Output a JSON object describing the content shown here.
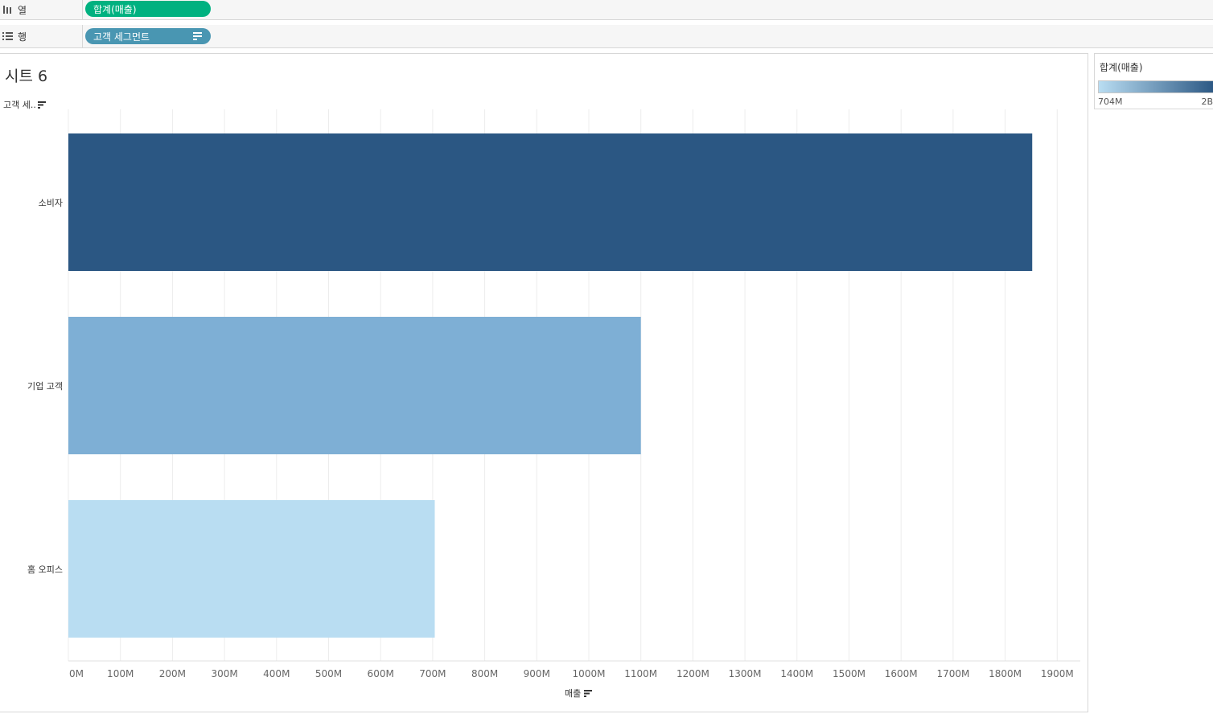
{
  "shelves": {
    "columns": {
      "label": "열",
      "pill": "합계(매출)",
      "pill_color": "#00b180"
    },
    "rows": {
      "label": "행",
      "pill": "고객 세그먼트",
      "pill_color": "#4996b2"
    }
  },
  "sheet": {
    "title": "시트 6",
    "row_header": "고객 세.."
  },
  "legend": {
    "title": "합계(매출)",
    "min_label": "704M",
    "max_label": "2B",
    "color_low": "#b9ddf2",
    "color_high": "#2b5783"
  },
  "chart_data": {
    "type": "bar",
    "orientation": "horizontal",
    "categories": [
      "소비자",
      "기업 고객",
      "홈 오피스"
    ],
    "values": [
      1852,
      1100,
      704
    ],
    "colors": [
      "#2b5783",
      "#7eafd5",
      "#b9ddf2"
    ],
    "xlabel": "매출",
    "ylabel": "고객 세..",
    "xlim": [
      0,
      1950
    ],
    "xticks": [
      "0M",
      "100M",
      "200M",
      "300M",
      "400M",
      "500M",
      "600M",
      "700M",
      "800M",
      "900M",
      "1000M",
      "1100M",
      "1200M",
      "1300M",
      "1400M",
      "1500M",
      "1600M",
      "1700M",
      "1800M",
      "1900M"
    ],
    "grid": "vertical"
  }
}
